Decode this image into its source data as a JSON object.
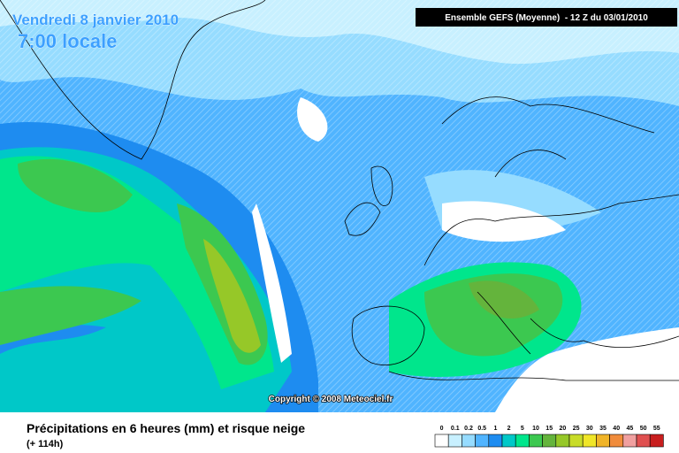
{
  "header": {
    "date": "Vendredi 8 janvier 2010",
    "time": "7:00 locale",
    "model": "Ensemble GEFS (Moyenne)  - 12 Z du 03/01/2010"
  },
  "copyright": "Copyright © 2008 Meteociel.fr",
  "footer": {
    "caption": "Précipitations en 6 heures (mm) et risque neige",
    "lead": "(+ 114h)"
  },
  "legend": {
    "items": [
      {
        "label": "0",
        "color": "#ffffff"
      },
      {
        "label": "0.1",
        "color": "#c8f0ff"
      },
      {
        "label": "0.2",
        "color": "#96dcff"
      },
      {
        "label": "0.5",
        "color": "#50b4ff"
      },
      {
        "label": "1",
        "color": "#1e8cf0"
      },
      {
        "label": "2",
        "color": "#00c8c8"
      },
      {
        "label": "5",
        "color": "#00e68c"
      },
      {
        "label": "10",
        "color": "#3cc850"
      },
      {
        "label": "15",
        "color": "#64b43c"
      },
      {
        "label": "20",
        "color": "#96c828"
      },
      {
        "label": "25",
        "color": "#c8dc28"
      },
      {
        "label": "30",
        "color": "#f0e628"
      },
      {
        "label": "35",
        "color": "#f0b428"
      },
      {
        "label": "40",
        "color": "#f08c3c"
      },
      {
        "label": "45",
        "color": "#f0a0a0"
      },
      {
        "label": "50",
        "color": "#e05050"
      },
      {
        "label": "55",
        "color": "#c81e1e"
      }
    ]
  }
}
